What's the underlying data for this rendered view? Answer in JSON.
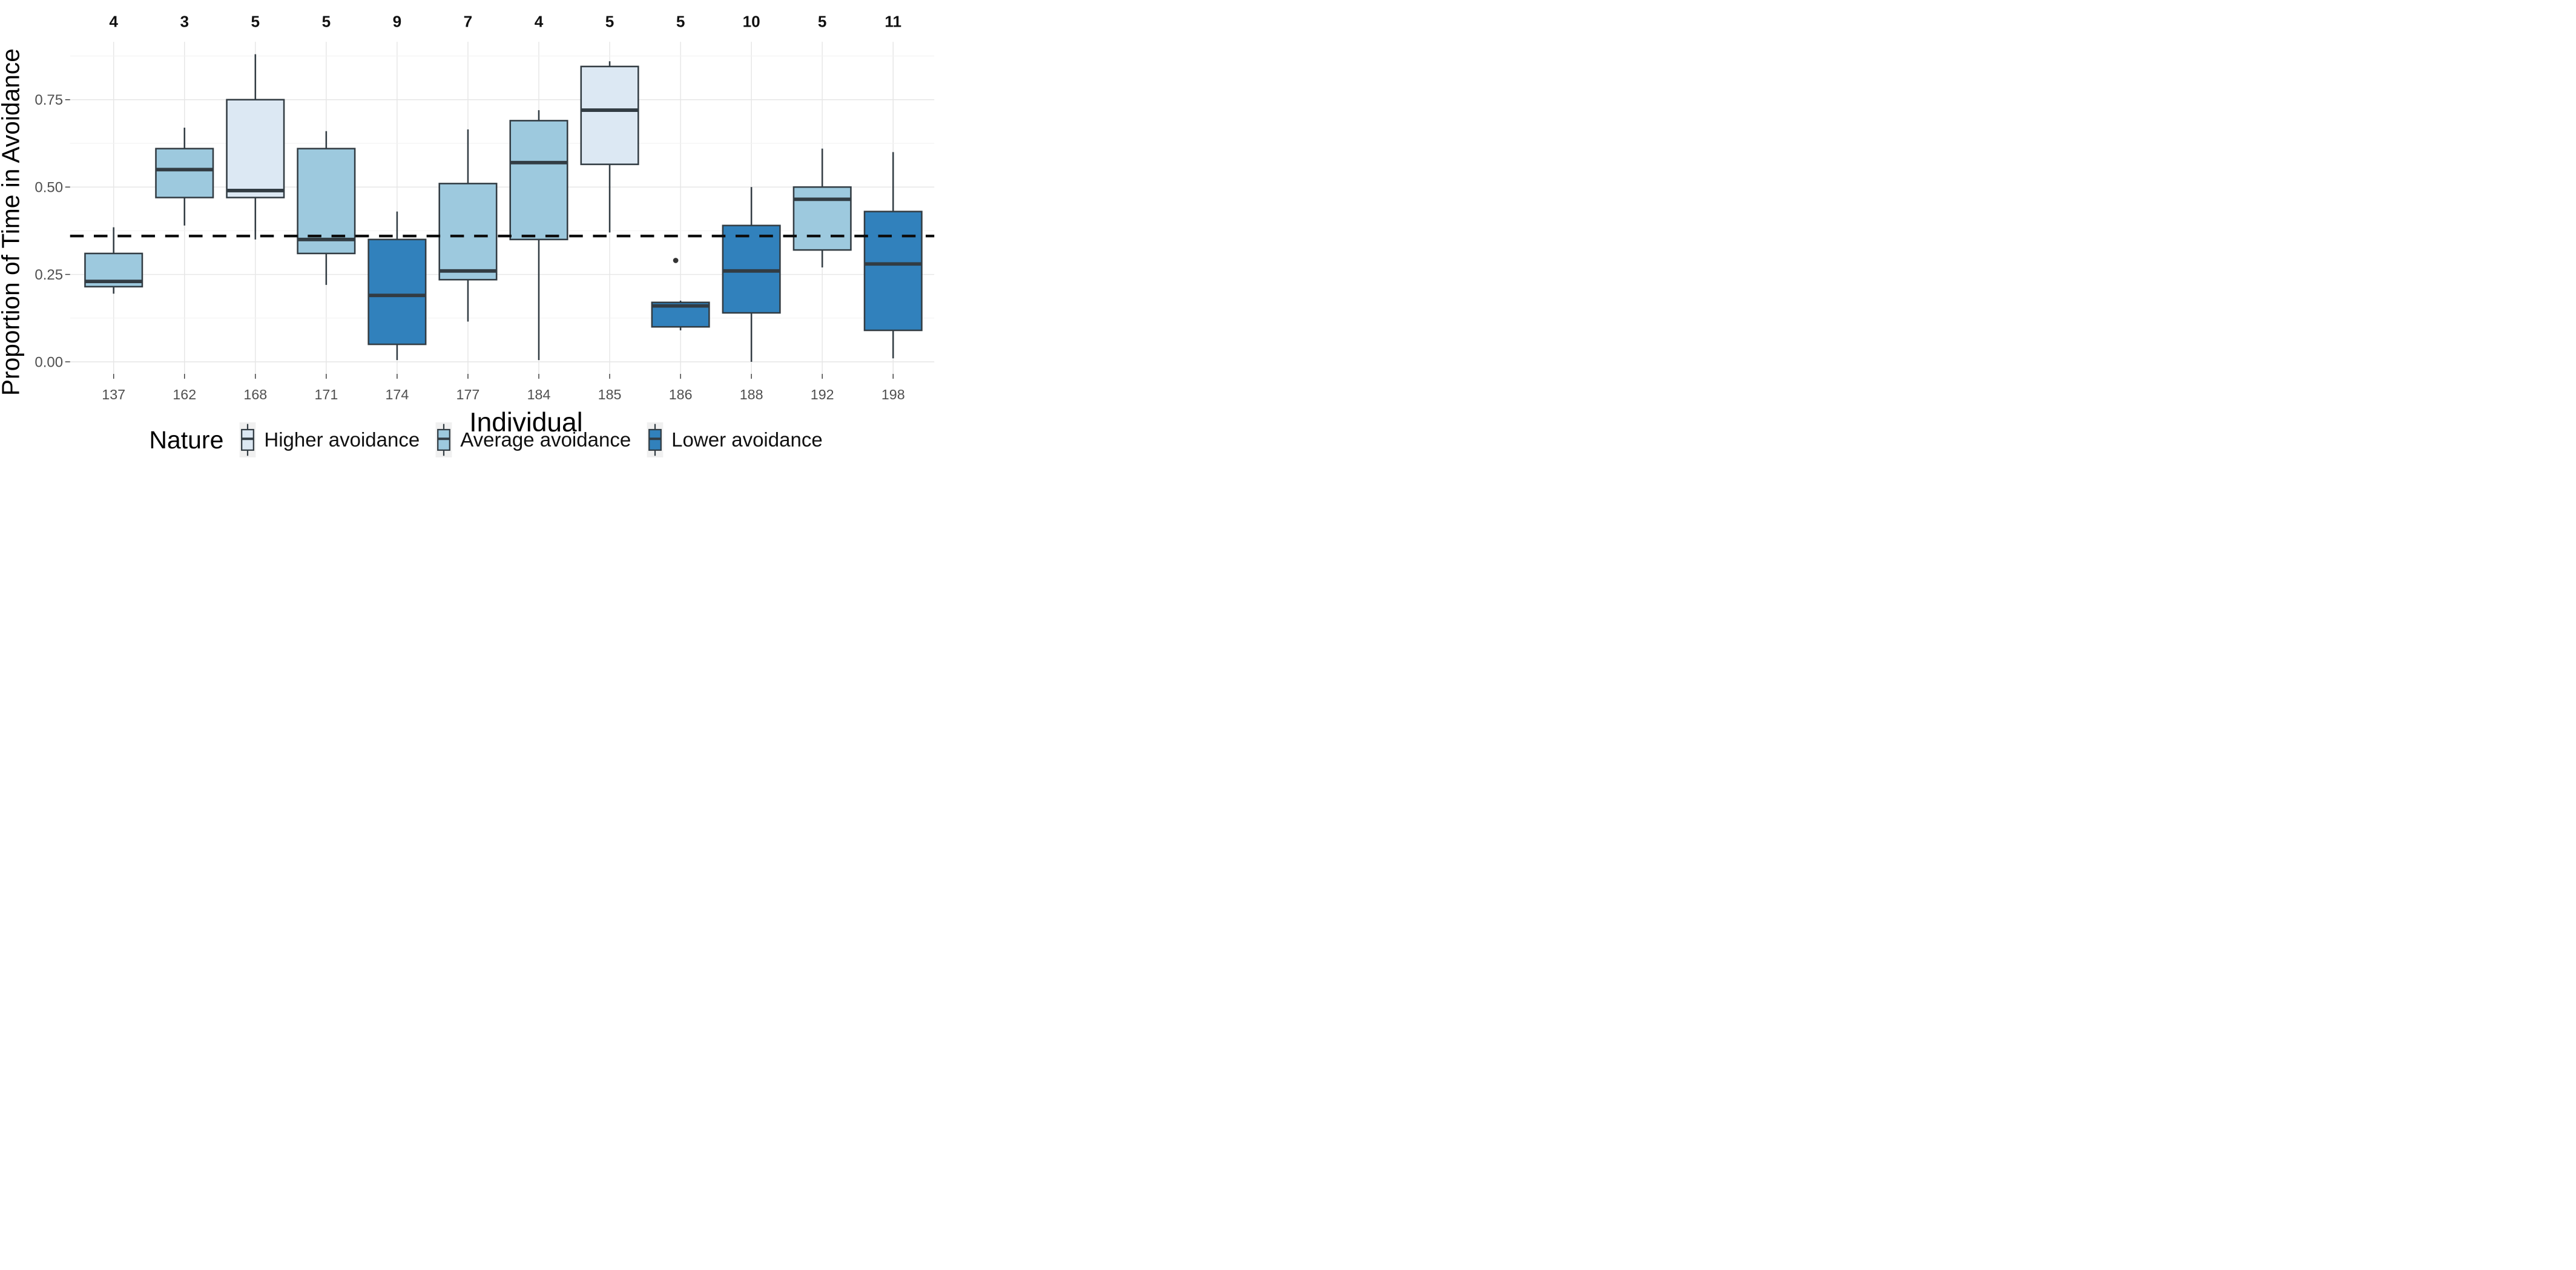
{
  "figure": {
    "x_axis_title": "Individual",
    "y_axis_title": "Proportion of Time in Avoidance"
  },
  "colors": {
    "group_higher": "#dce8f3",
    "group_average": "#9dc9de",
    "group_lower": "#3181bc",
    "box_outline": "#323c43",
    "median_line": "#323c43",
    "dashed_reference": "#0d0d0d",
    "grid_major": "#e6e6e6",
    "grid_minor": "#f2f2f2",
    "axis_tick": "#3a3a3a",
    "tick_label": "#4f4f4f",
    "count_label": "#111111",
    "outlier": "#333333",
    "legend_key_bg": "#f0f0f0",
    "panel_bg": "#ffffff"
  },
  "chart_data": {
    "type": "box",
    "title": "",
    "xlabel": "Individual",
    "ylabel": "Proportion of Time in Avoidance",
    "ylim": [
      0,
      0.92
    ],
    "grid": "on",
    "y_ticks": [
      {
        "value": 0.0,
        "label": "0.00"
      },
      {
        "value": 0.25,
        "label": "0.25"
      },
      {
        "value": 0.5,
        "label": "0.50"
      },
      {
        "value": 0.75,
        "label": "0.75"
      }
    ],
    "y_minor_ticks": [
      0.125,
      0.375,
      0.625,
      0.875
    ],
    "reference_line": {
      "value": 0.36,
      "style": "dashed",
      "orientation": "horizontal"
    },
    "legend": {
      "title": "Nature",
      "position": "bottom",
      "items": [
        {
          "key": "higher",
          "label": "Higher avoidance",
          "color": "#dce8f3"
        },
        {
          "key": "average",
          "label": "Average avoidance",
          "color": "#9dc9de"
        },
        {
          "key": "lower",
          "label": "Lower avoidance",
          "color": "#3181bc"
        }
      ]
    },
    "categories": [
      "137",
      "162",
      "168",
      "171",
      "174",
      "177",
      "184",
      "185",
      "186",
      "188",
      "192",
      "198"
    ],
    "counts": [
      4,
      3,
      5,
      5,
      9,
      7,
      4,
      5,
      5,
      10,
      5,
      11
    ],
    "boxes": [
      {
        "id": "137",
        "n": 4,
        "group": "average",
        "whisker_low": 0.195,
        "q1": 0.215,
        "median": 0.23,
        "q3": 0.31,
        "whisker_high": 0.385,
        "outliers": []
      },
      {
        "id": "162",
        "n": 3,
        "group": "average",
        "whisker_low": 0.39,
        "q1": 0.47,
        "median": 0.55,
        "q3": 0.61,
        "whisker_high": 0.67,
        "outliers": []
      },
      {
        "id": "168",
        "n": 5,
        "group": "higher",
        "whisker_low": 0.35,
        "q1": 0.47,
        "median": 0.49,
        "q3": 0.75,
        "whisker_high": 0.88,
        "outliers": []
      },
      {
        "id": "171",
        "n": 5,
        "group": "average",
        "whisker_low": 0.22,
        "q1": 0.31,
        "median": 0.35,
        "q3": 0.61,
        "whisker_high": 0.66,
        "outliers": []
      },
      {
        "id": "174",
        "n": 9,
        "group": "lower",
        "whisker_low": 0.005,
        "q1": 0.05,
        "median": 0.19,
        "q3": 0.35,
        "whisker_high": 0.43,
        "outliers": []
      },
      {
        "id": "177",
        "n": 7,
        "group": "average",
        "whisker_low": 0.115,
        "q1": 0.235,
        "median": 0.26,
        "q3": 0.51,
        "whisker_high": 0.665,
        "outliers": []
      },
      {
        "id": "184",
        "n": 4,
        "group": "average",
        "whisker_low": 0.005,
        "q1": 0.35,
        "median": 0.57,
        "q3": 0.69,
        "whisker_high": 0.72,
        "outliers": []
      },
      {
        "id": "185",
        "n": 5,
        "group": "higher",
        "whisker_low": 0.37,
        "q1": 0.565,
        "median": 0.72,
        "q3": 0.845,
        "whisker_high": 0.86,
        "outliers": []
      },
      {
        "id": "186",
        "n": 5,
        "group": "lower",
        "whisker_low": 0.09,
        "q1": 0.1,
        "median": 0.16,
        "q3": 0.17,
        "whisker_high": 0.175,
        "outliers": [
          0.29
        ]
      },
      {
        "id": "188",
        "n": 10,
        "group": "lower",
        "whisker_low": 0.0,
        "q1": 0.14,
        "median": 0.26,
        "q3": 0.39,
        "whisker_high": 0.5,
        "outliers": []
      },
      {
        "id": "192",
        "n": 5,
        "group": "average",
        "whisker_low": 0.27,
        "q1": 0.32,
        "median": 0.465,
        "q3": 0.5,
        "whisker_high": 0.61,
        "outliers": []
      },
      {
        "id": "198",
        "n": 11,
        "group": "lower",
        "whisker_low": 0.01,
        "q1": 0.09,
        "median": 0.28,
        "q3": 0.43,
        "whisker_high": 0.6,
        "outliers": []
      }
    ]
  }
}
